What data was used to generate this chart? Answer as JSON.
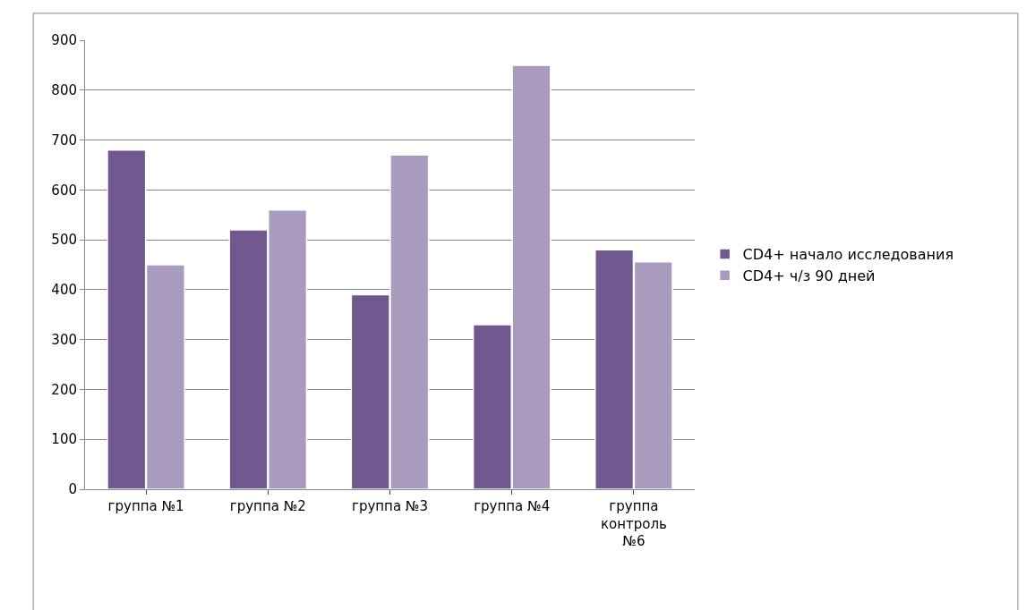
{
  "chart_data": {
    "type": "bar",
    "categories": [
      "группа №1",
      "группа №2",
      "группа №3",
      "группа №4",
      "группа контроль №6"
    ],
    "series": [
      {
        "name": "CD4+ начало исследования",
        "color": "#71588f",
        "values": [
          680,
          520,
          390,
          330,
          480
        ]
      },
      {
        "name": "CD4+ ч/з 90 дней",
        "color": "#a99bbd",
        "values": [
          450,
          560,
          670,
          850,
          456
        ]
      }
    ],
    "ylim": [
      0,
      900
    ],
    "yticks": [
      0,
      100,
      200,
      300,
      400,
      500,
      600,
      700,
      800,
      900
    ],
    "grid": "y",
    "legend": "right"
  }
}
